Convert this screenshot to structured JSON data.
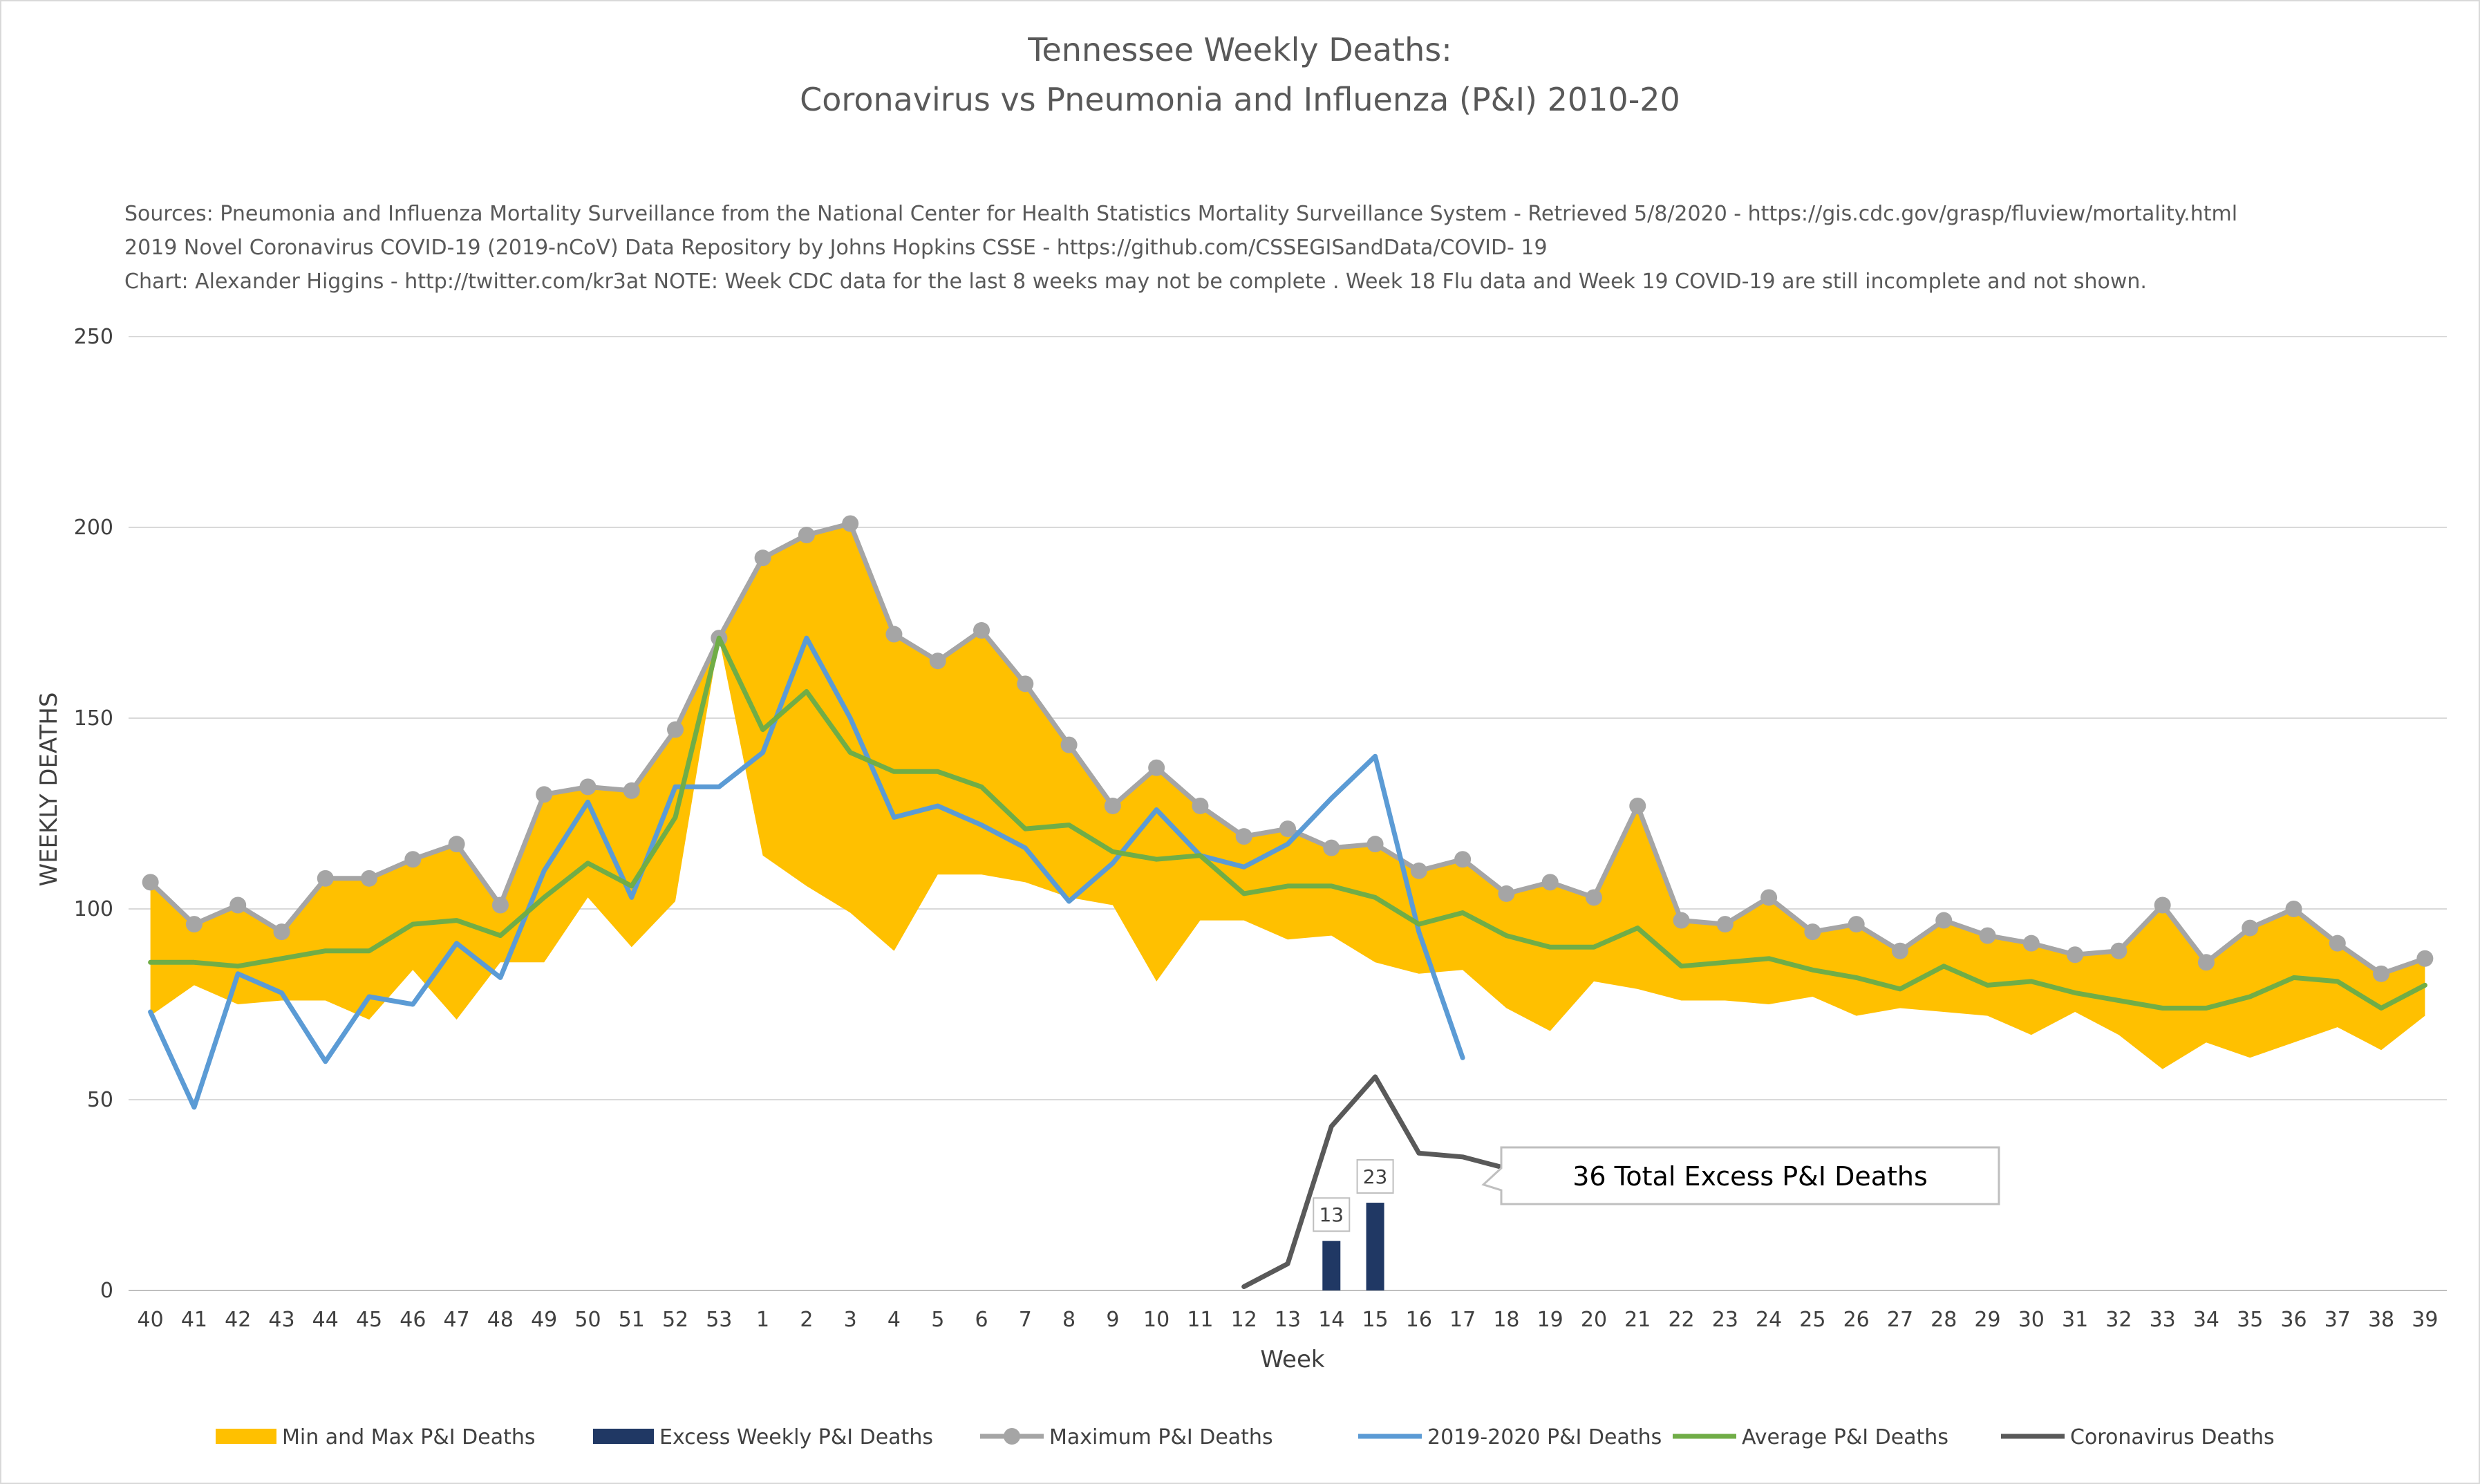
{
  "chart_data": {
    "type": "line",
    "title_line1": "Tennessee Weekly Deaths:",
    "title_line2": "Coronavirus vs Pneumonia and Influenza (P&I) 2010-20",
    "sources": [
      "Sources: Pneumonia and Influenza Mortality Surveillance from the National Center for Health Statistics Mortality Surveillance System - Retrieved 5/8/2020 - https://gis.cdc.gov/grasp/fluview/mortality.html",
      "2019 Novel Coronavirus COVID-19 (2019-nCoV) Data Repository by Johns Hopkins CSSE - https://github.com/CSSEGISandData/COVID- 19",
      "Chart: Alexander Higgins - http://twitter.com/kr3at   NOTE: Week CDC data for the last 8 weeks may not be complete . Week 18 Flu data and Week 19 COVID-19 are still incomplete and not shown."
    ],
    "xlabel": "Week",
    "ylabel": "WEEKLY DEATHS",
    "ylim": [
      0,
      250
    ],
    "yticks": [
      0,
      50,
      100,
      150,
      200,
      250
    ],
    "grid": true,
    "legend_position": "bottom",
    "categories": [
      "40",
      "41",
      "42",
      "43",
      "44",
      "45",
      "46",
      "47",
      "48",
      "49",
      "50",
      "51",
      "52",
      "53",
      "1",
      "2",
      "3",
      "4",
      "5",
      "6",
      "7",
      "8",
      "9",
      "10",
      "11",
      "12",
      "13",
      "14",
      "15",
      "16",
      "17",
      "18",
      "19",
      "20",
      "21",
      "22",
      "23",
      "24",
      "25",
      "26",
      "27",
      "28",
      "29",
      "30",
      "31",
      "32",
      "33",
      "34",
      "35",
      "36",
      "37",
      "38",
      "39"
    ],
    "series": [
      {
        "name": "Min and Max P&I Deaths",
        "kind": "band",
        "color": "#ffc000",
        "min": [
          72,
          80,
          75,
          76,
          76,
          71,
          84,
          71,
          86,
          86,
          103,
          90,
          102,
          171,
          114,
          106,
          99,
          89,
          109,
          109,
          107,
          103,
          101,
          81,
          97,
          97,
          92,
          93,
          86,
          83,
          84,
          74,
          68,
          81,
          79,
          76,
          76,
          75,
          77,
          72,
          74,
          73,
          72,
          67,
          73,
          67,
          58,
          65,
          61,
          65,
          69,
          63,
          72
        ],
        "max": [
          107,
          96,
          101,
          94,
          108,
          108,
          113,
          117,
          101,
          130,
          132,
          131,
          147,
          171,
          192,
          198,
          201,
          172,
          165,
          173,
          159,
          143,
          127,
          137,
          127,
          119,
          121,
          116,
          117,
          110,
          113,
          104,
          107,
          103,
          127,
          97,
          96,
          103,
          94,
          96,
          89,
          97,
          93,
          91,
          88,
          89,
          101,
          86,
          95,
          100,
          91,
          83,
          87
        ]
      },
      {
        "name": "Excess Weekly P&I Deaths",
        "kind": "bar",
        "color": "#203864",
        "values": [
          null,
          null,
          null,
          null,
          null,
          null,
          null,
          null,
          null,
          null,
          null,
          null,
          null,
          null,
          null,
          null,
          null,
          null,
          null,
          null,
          null,
          null,
          null,
          null,
          null,
          null,
          null,
          13,
          23,
          null,
          null,
          null,
          null,
          null,
          null,
          null,
          null,
          null,
          null,
          null,
          null,
          null,
          null,
          null,
          null,
          null,
          null,
          null,
          null,
          null,
          null,
          null,
          null
        ]
      },
      {
        "name": "Maximum P&I Deaths",
        "kind": "line-marker",
        "color": "#a5a5a5",
        "values": [
          107,
          96,
          101,
          94,
          108,
          108,
          113,
          117,
          101,
          130,
          132,
          131,
          147,
          171,
          192,
          198,
          201,
          172,
          165,
          173,
          159,
          143,
          127,
          137,
          127,
          119,
          121,
          116,
          117,
          110,
          113,
          104,
          107,
          103,
          127,
          97,
          96,
          103,
          94,
          96,
          89,
          97,
          93,
          91,
          88,
          89,
          101,
          86,
          95,
          100,
          91,
          83,
          87
        ]
      },
      {
        "name": "2019-2020 P&I Deaths",
        "kind": "line",
        "color": "#5b9bd5",
        "values": [
          73,
          48,
          83,
          78,
          60,
          77,
          75,
          91,
          82,
          110,
          128,
          103,
          132,
          132,
          141,
          171,
          150,
          124,
          127,
          122,
          116,
          102,
          112,
          126,
          114,
          111,
          117,
          129,
          140,
          94,
          61,
          null,
          null,
          null,
          null,
          null,
          null,
          null,
          null,
          null,
          null,
          null,
          null,
          null,
          null,
          null,
          null,
          null,
          null,
          null,
          null,
          null,
          null
        ]
      },
      {
        "name": "Average P&I Deaths",
        "kind": "line",
        "color": "#70ad47",
        "values": [
          86,
          86,
          85,
          87,
          89,
          89,
          96,
          97,
          93,
          103,
          112,
          106,
          124,
          171,
          147,
          157,
          141,
          136,
          136,
          132,
          121,
          122,
          115,
          113,
          114,
          104,
          106,
          106,
          103,
          96,
          99,
          93,
          90,
          90,
          95,
          85,
          86,
          87,
          84,
          82,
          79,
          85,
          80,
          81,
          78,
          76,
          74,
          74,
          77,
          82,
          81,
          74,
          80
        ]
      },
      {
        "name": "Coronavirus Deaths",
        "kind": "line",
        "color": "#595959",
        "values": [
          null,
          null,
          null,
          null,
          null,
          null,
          null,
          null,
          null,
          null,
          null,
          null,
          null,
          null,
          null,
          null,
          null,
          null,
          null,
          null,
          null,
          null,
          null,
          null,
          null,
          1,
          7,
          43,
          56,
          36,
          35,
          32,
          null,
          null,
          null,
          null,
          null,
          null,
          null,
          null,
          null,
          null,
          null,
          null,
          null,
          null,
          null,
          null,
          null,
          null,
          null,
          null,
          null
        ]
      }
    ],
    "data_labels": [
      {
        "week": "14",
        "value": 13,
        "text": "13"
      },
      {
        "week": "15",
        "value": 23,
        "text": "23"
      }
    ],
    "callout": {
      "text": "36 Total Excess P&I Deaths",
      "week": "17",
      "value": 35
    }
  }
}
